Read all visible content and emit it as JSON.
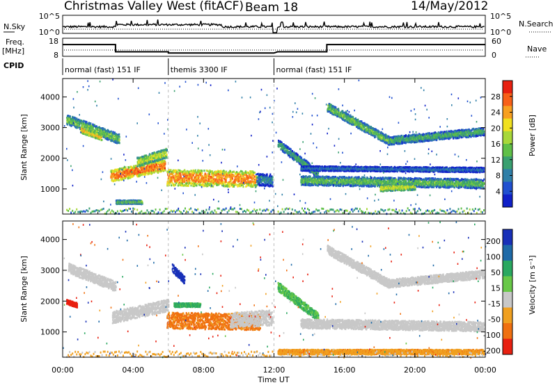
{
  "header": {
    "station": "Christmas Valley West (fitACF)",
    "beam": "Beam 18",
    "date": "14/May/2012"
  },
  "top_panels": {
    "nsky_label": "N.Sky",
    "nsky_ticks": [
      "10^5",
      "10^0"
    ],
    "nsearch_label": "N.Search",
    "nsearch_ticks": [
      "10^5",
      "10^0"
    ],
    "freq_label_1": "Freq.",
    "freq_label_2": "[MHz]",
    "freq_ticks": [
      "18",
      "8"
    ],
    "nave_label": "Nave",
    "nave_ticks": [
      "60",
      "0"
    ],
    "cpid_label": "CPID",
    "cpid_segments": [
      {
        "start_hour": 0,
        "end_hour": 6,
        "text": "normal (fast) 151 IF"
      },
      {
        "start_hour": 6,
        "end_hour": 12,
        "text": "themis 3300 IF"
      },
      {
        "start_hour": 12,
        "end_hour": 24,
        "text": "normal (fast) 151 IF"
      }
    ],
    "freq_trace": [
      {
        "t": 0,
        "mhz": 14.5
      },
      {
        "t": 3.0,
        "mhz": 14.5
      },
      {
        "t": 3.0,
        "mhz": 10.5
      },
      {
        "t": 6.0,
        "mhz": 10.5
      },
      {
        "t": 6.0,
        "mhz": 9.8
      },
      {
        "t": 12.0,
        "mhz": 9.8
      },
      {
        "t": 12.2,
        "mhz": 10.5
      },
      {
        "t": 15.0,
        "mhz": 10.5
      },
      {
        "t": 15.0,
        "mhz": 14.5
      },
      {
        "t": 24,
        "mhz": 14.5
      }
    ]
  },
  "chart_data": [
    {
      "type": "heatmap",
      "name": "Power",
      "ylabel": "Slant Range [km]",
      "yticks": [
        1000,
        2000,
        3000,
        4000
      ],
      "ylim": [
        180,
        4600
      ],
      "xlim": [
        0,
        24
      ],
      "colorbar": {
        "label": "Power [dB]",
        "ticks": [
          4,
          8,
          12,
          16,
          20,
          24,
          28
        ],
        "range": [
          0,
          32
        ],
        "colors": [
          "#1020c8",
          "#2050d0",
          "#2f7fa8",
          "#3aa070",
          "#60c048",
          "#a8d83a",
          "#f0e020",
          "#f8a020",
          "#f86018",
          "#e82010"
        ]
      },
      "echo_bands": [
        {
          "t0": 0.2,
          "t1": 3.2,
          "r0": 3300,
          "r1": 2650,
          "w": 320,
          "value": 14
        },
        {
          "t0": 1.0,
          "t1": 2.2,
          "r0": 2950,
          "r1": 2700,
          "w": 180,
          "value": 22
        },
        {
          "t0": 2.7,
          "t1": 5.8,
          "r0": 1450,
          "r1": 1800,
          "w": 380,
          "value": 27
        },
        {
          "t0": 4.2,
          "t1": 5.9,
          "r0": 1900,
          "r1": 2200,
          "w": 300,
          "value": 18
        },
        {
          "t0": 3.0,
          "t1": 4.5,
          "r0": 600,
          "r1": 600,
          "w": 120,
          "value": 14
        },
        {
          "t0": 5.9,
          "t1": 11.0,
          "r0": 1400,
          "r1": 1350,
          "w": 520,
          "value": 26
        },
        {
          "t0": 11.0,
          "t1": 11.9,
          "r0": 1350,
          "r1": 1300,
          "w": 400,
          "value": 8
        },
        {
          "t0": 12.2,
          "t1": 14.5,
          "r0": 2500,
          "r1": 1500,
          "w": 280,
          "value": 11
        },
        {
          "t0": 13.5,
          "t1": 23.9,
          "r0": 1300,
          "r1": 1200,
          "w": 300,
          "value": 13
        },
        {
          "t0": 18.0,
          "t1": 20.0,
          "r0": 1050,
          "r1": 1100,
          "w": 200,
          "value": 19
        },
        {
          "t0": 15.0,
          "t1": 18.5,
          "r0": 3700,
          "r1": 2600,
          "w": 280,
          "value": 14
        },
        {
          "t0": 18.5,
          "t1": 23.9,
          "r0": 2600,
          "r1": 2900,
          "w": 260,
          "value": 12
        },
        {
          "t0": 13.5,
          "t1": 23.9,
          "r0": 1700,
          "r1": 1650,
          "w": 150,
          "value": 6
        }
      ]
    },
    {
      "type": "heatmap",
      "name": "Velocity",
      "ylabel": "Slant Range [km]",
      "yticks": [
        1000,
        2000,
        3000,
        4000
      ],
      "ylim": [
        180,
        4600
      ],
      "xlim": [
        0,
        24
      ],
      "xlabel": "Time UT",
      "xticks": [
        "00:00",
        "04:00",
        "08:00",
        "12:00",
        "16:00",
        "20:00",
        "00:00"
      ],
      "colorbar": {
        "label": "Velocity [m s⁻¹]",
        "ticks": [
          200,
          100,
          50,
          15,
          -15,
          -50,
          -100,
          -200
        ],
        "colors": [
          "#1830b8",
          "#1e6aa8",
          "#2aa860",
          "#68c848",
          "#c8c8c8",
          "#f0a020",
          "#f07010",
          "#e82010"
        ]
      },
      "echo_bands": [
        {
          "t0": 0.3,
          "t1": 3.0,
          "r0": 3100,
          "r1": 2500,
          "w": 320,
          "value": 0
        },
        {
          "t0": 0.2,
          "t1": 0.8,
          "r0": 2000,
          "r1": 1900,
          "w": 150,
          "value": -200
        },
        {
          "t0": 2.8,
          "t1": 6.0,
          "r0": 1500,
          "r1": 1900,
          "w": 380,
          "value": 0
        },
        {
          "t0": 5.9,
          "t1": 11.2,
          "r0": 1400,
          "r1": 1350,
          "w": 520,
          "value": -60
        },
        {
          "t0": 9.5,
          "t1": 11.9,
          "r0": 1400,
          "r1": 1500,
          "w": 500,
          "value": 0
        },
        {
          "t0": 6.2,
          "t1": 6.9,
          "r0": 3100,
          "r1": 2700,
          "w": 250,
          "value": 200
        },
        {
          "t0": 6.3,
          "t1": 7.8,
          "r0": 1900,
          "r1": 1900,
          "w": 120,
          "value": 40
        },
        {
          "t0": 12.2,
          "t1": 14.5,
          "r0": 2500,
          "r1": 1500,
          "w": 280,
          "value": 30
        },
        {
          "t0": 13.5,
          "t1": 23.9,
          "r0": 1300,
          "r1": 1200,
          "w": 300,
          "value": 0
        },
        {
          "t0": 15.0,
          "t1": 18.5,
          "r0": 3700,
          "r1": 2600,
          "w": 280,
          "value": 0
        },
        {
          "t0": 18.5,
          "t1": 23.9,
          "r0": 2600,
          "r1": 2900,
          "w": 260,
          "value": 0
        },
        {
          "t0": 12.2,
          "t1": 23.9,
          "r0": 380,
          "r1": 380,
          "w": 150,
          "value": -40
        }
      ]
    }
  ]
}
